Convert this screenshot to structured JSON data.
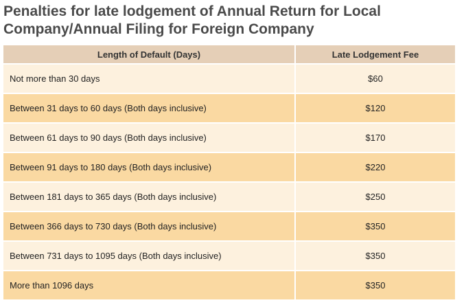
{
  "title": "Penalties for late lodgement of Annual Return for Local Company/Annual Filing for Foreign Company",
  "table": {
    "headers": [
      "Length of Default (Days)",
      "Late Lodgement Fee"
    ],
    "rows": [
      {
        "duration": "Not more than 30 days",
        "fee": "$60"
      },
      {
        "duration": "Between 31 days to 60 days (Both days inclusive)",
        "fee": "$120"
      },
      {
        "duration": "Between 61 days to 90 days (Both days inclusive)",
        "fee": "$170"
      },
      {
        "duration": "Between 91 days to 180 days (Both days inclusive)",
        "fee": "$220"
      },
      {
        "duration": "Between 181 days to 365 days (Both days inclusive)",
        "fee": "$250"
      },
      {
        "duration": "Between 366 days to 730 days (Both days inclusive)",
        "fee": "$350"
      },
      {
        "duration": "Between 731 days to 1095 days (Both days inclusive)",
        "fee": "$350"
      },
      {
        "duration": "More than 1096 days",
        "fee": "$350"
      }
    ]
  },
  "colors": {
    "header_bg": "#e5cfb7",
    "row_light": "#fdf1de",
    "row_dark": "#fad9a2",
    "title_text": "#4a4a4a"
  }
}
